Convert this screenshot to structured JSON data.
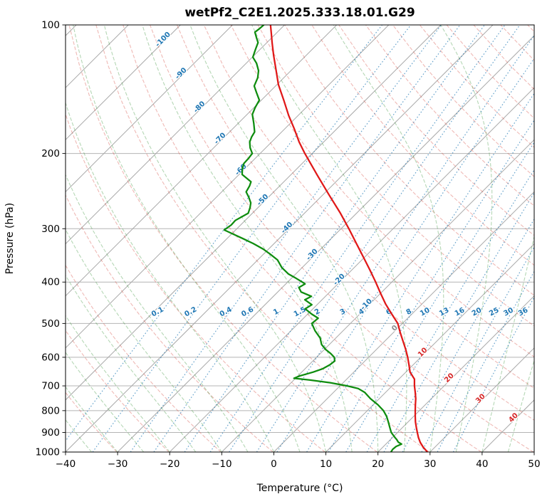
{
  "title": "wetPf2_C2E1.2025.333.18.01.G29",
  "axes": {
    "x_label": "Temperature (°C)",
    "y_label": "Pressure (hPa)",
    "x_ticks": [
      -40,
      -30,
      -20,
      -10,
      0,
      10,
      20,
      30,
      40,
      50
    ],
    "y_ticks": [
      100,
      200,
      300,
      400,
      500,
      600,
      700,
      800,
      900,
      1000
    ]
  },
  "style": {
    "grid_color": "#b4b4b4",
    "isotherm_color": "#a9a9a9",
    "dry_adiabat_color": "rgba(214,70,60,0.38)",
    "moist_adiabat_color": "rgba(60,150,60,0.38)",
    "mixing_color": "rgba(31,119,180,0.70)",
    "temp_color": "#e01818",
    "dewpoint_color": "#0e8c0e",
    "label_neg_color": "#1f77b4",
    "label_zero_color": "#8c8c8c",
    "label_pos_color": "#d62728"
  },
  "chart_data": {
    "type": "line",
    "chart_kind": "skew-t-log-p",
    "title": "wetPf2_C2E1.2025.333.18.01.G29",
    "xlabel": "Temperature (°C)",
    "ylabel": "Pressure (hPa)",
    "xlim": [
      -40,
      50
    ],
    "pressure_lim": [
      1000,
      100
    ],
    "skew_deg": 45,
    "grid": true,
    "series": [
      {
        "name": "temperature",
        "units": "degC",
        "points": [
          [
            1000,
            29.5
          ],
          [
            975,
            27.8
          ],
          [
            950,
            26.3
          ],
          [
            925,
            25.0
          ],
          [
            900,
            23.8
          ],
          [
            875,
            22.6
          ],
          [
            850,
            21.4
          ],
          [
            825,
            20.3
          ],
          [
            800,
            19.2
          ],
          [
            775,
            18.1
          ],
          [
            750,
            17.0
          ],
          [
            725,
            15.7
          ],
          [
            700,
            14.3
          ],
          [
            675,
            13.0
          ],
          [
            650,
            10.8
          ],
          [
            625,
            9.2
          ],
          [
            600,
            7.5
          ],
          [
            575,
            5.6
          ],
          [
            550,
            3.5
          ],
          [
            525,
            1.3
          ],
          [
            500,
            -0.9
          ],
          [
            475,
            -3.9
          ],
          [
            450,
            -7.0
          ],
          [
            425,
            -10.0
          ],
          [
            400,
            -13.1
          ],
          [
            375,
            -16.5
          ],
          [
            350,
            -20.2
          ],
          [
            325,
            -24.2
          ],
          [
            300,
            -28.5
          ],
          [
            275,
            -33.3
          ],
          [
            250,
            -38.8
          ],
          [
            225,
            -44.8
          ],
          [
            200,
            -51.4
          ],
          [
            188,
            -54.7
          ],
          [
            175,
            -58.2
          ],
          [
            163,
            -61.8
          ],
          [
            150,
            -65.7
          ],
          [
            138,
            -69.7
          ],
          [
            125,
            -73.8
          ],
          [
            118,
            -76.2
          ],
          [
            110,
            -79.0
          ],
          [
            105,
            -80.8
          ],
          [
            100,
            -82.7
          ]
        ]
      },
      {
        "name": "dewpoint",
        "units": "degC",
        "points": [
          [
            1000,
            22.5
          ],
          [
            985,
            22.3
          ],
          [
            970,
            22.4
          ],
          [
            958,
            23.0
          ],
          [
            948,
            22.0
          ],
          [
            935,
            21.2
          ],
          [
            925,
            20.5
          ],
          [
            900,
            18.8
          ],
          [
            875,
            17.5
          ],
          [
            850,
            16.2
          ],
          [
            825,
            14.8
          ],
          [
            800,
            13.1
          ],
          [
            775,
            10.9
          ],
          [
            750,
            8.3
          ],
          [
            725,
            6.0
          ],
          [
            710,
            4.0
          ],
          [
            700,
            1.4
          ],
          [
            688,
            -2.5
          ],
          [
            678,
            -7.0
          ],
          [
            672,
            -10.3
          ],
          [
            663,
            -9.6
          ],
          [
            650,
            -7.8
          ],
          [
            638,
            -6.6
          ],
          [
            625,
            -6.0
          ],
          [
            612,
            -5.8
          ],
          [
            600,
            -6.6
          ],
          [
            588,
            -8.0
          ],
          [
            575,
            -9.8
          ],
          [
            560,
            -11.5
          ],
          [
            541,
            -13.0
          ],
          [
            520,
            -15.4
          ],
          [
            500,
            -17.4
          ],
          [
            486,
            -17.2
          ],
          [
            475,
            -19.3
          ],
          [
            462,
            -21.5
          ],
          [
            452,
            -21.0
          ],
          [
            440,
            -23.3
          ],
          [
            432,
            -22.7
          ],
          [
            422,
            -25.5
          ],
          [
            412,
            -26.8
          ],
          [
            404,
            -26.3
          ],
          [
            400,
            -27.2
          ],
          [
            390,
            -29.6
          ],
          [
            383,
            -31.4
          ],
          [
            370,
            -33.9
          ],
          [
            355,
            -36.2
          ],
          [
            345,
            -38.5
          ],
          [
            335,
            -41.0
          ],
          [
            325,
            -44.0
          ],
          [
            316,
            -47.1
          ],
          [
            308,
            -50.0
          ],
          [
            302,
            -52.2
          ],
          [
            294,
            -51.8
          ],
          [
            287,
            -51.9
          ],
          [
            276,
            -50.8
          ],
          [
            268,
            -51.5
          ],
          [
            261,
            -52.3
          ],
          [
            253,
            -53.8
          ],
          [
            246,
            -55.3
          ],
          [
            238,
            -55.8
          ],
          [
            233,
            -56.3
          ],
          [
            224,
            -59.4
          ],
          [
            217,
            -60.5
          ],
          [
            211,
            -61.2
          ],
          [
            205,
            -61.3
          ],
          [
            200,
            -61.5
          ],
          [
            194,
            -63.0
          ],
          [
            188,
            -64.2
          ],
          [
            183,
            -64.8
          ],
          [
            178,
            -65.2
          ],
          [
            170,
            -67.0
          ],
          [
            162,
            -69.0
          ],
          [
            156,
            -69.8
          ],
          [
            150,
            -70.4
          ],
          [
            144,
            -72.4
          ],
          [
            139,
            -74.1
          ],
          [
            133,
            -75.0
          ],
          [
            128,
            -76.2
          ],
          [
            123,
            -78.0
          ],
          [
            119,
            -79.9
          ],
          [
            114,
            -80.9
          ],
          [
            110,
            -81.7
          ],
          [
            107,
            -83.0
          ],
          [
            104,
            -84.3
          ],
          [
            102,
            -84.1
          ],
          [
            100,
            -84.0
          ]
        ]
      }
    ],
    "background": {
      "isotherms": {
        "start": -130,
        "end": 50,
        "step": 10
      },
      "dry_adiabats_K": {
        "start": 233,
        "end": 463,
        "step": 10
      },
      "moist_adiabats_start_c": {
        "start": -40,
        "end": 50,
        "step": 5
      },
      "mixing_ratios_g_kg": [
        0.1,
        0.2,
        0.4,
        0.6,
        1,
        1.5,
        2,
        3,
        4,
        6,
        8,
        10,
        13,
        16,
        20,
        25,
        30,
        36
      ],
      "mixing_label_pressure": 480,
      "isotherm_labels": [
        {
          "t": -100,
          "p": 109
        },
        {
          "t": -90,
          "p": 131
        },
        {
          "t": -80,
          "p": 157
        },
        {
          "t": -70,
          "p": 186
        },
        {
          "t": -60,
          "p": 220
        },
        {
          "t": -50,
          "p": 259
        },
        {
          "t": -40,
          "p": 301
        },
        {
          "t": -30,
          "p": 348
        },
        {
          "t": -20,
          "p": 398
        },
        {
          "t": -10,
          "p": 455
        },
        {
          "t": 0,
          "p": 517
        },
        {
          "t": 10,
          "p": 589
        },
        {
          "t": 20,
          "p": 676
        },
        {
          "t": 30,
          "p": 756
        },
        {
          "t": 40,
          "p": 838
        }
      ]
    }
  }
}
